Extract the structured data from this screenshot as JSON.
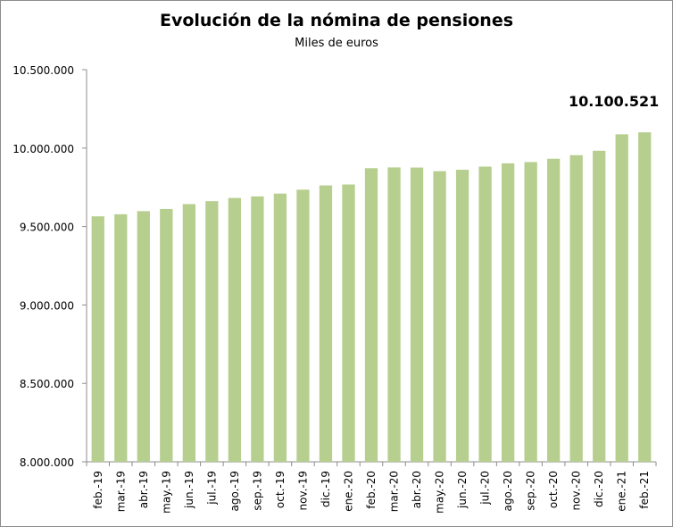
{
  "chart_data": {
    "type": "bar",
    "title": "Evolución de la nómina de pensiones",
    "subtitle": "Miles de euros",
    "xlabel": "",
    "ylabel": "",
    "ylim": [
      8000000,
      10500000
    ],
    "yticks": [
      8000000,
      8500000,
      9000000,
      9500000,
      10000000,
      10500000
    ],
    "ytick_labels": [
      "8.000.000",
      "8.500.000",
      "9.000.000",
      "9.500.000",
      "10.000.000",
      "10.500.000"
    ],
    "grid": false,
    "bar_color": "#b6cf8f",
    "categories": [
      "feb.-19",
      "mar.-19",
      "abr.-19",
      "may.-19",
      "jun.-19",
      "jul.-19",
      "ago.-19",
      "sep.-19",
      "oct.-19",
      "nov.-19",
      "dic.-19",
      "ene.-20",
      "feb.-20",
      "mar.-20",
      "abr.-20",
      "may.-20",
      "jun.-20",
      "jul.-20",
      "ago.-20",
      "sep.-20",
      "oct.-20",
      "nov.-20",
      "dic.-20",
      "ene.-21",
      "feb.-21"
    ],
    "values": [
      9565000,
      9578000,
      9598000,
      9612000,
      9643000,
      9662000,
      9682000,
      9692000,
      9710000,
      9735000,
      9762000,
      9768000,
      9872000,
      9877000,
      9876000,
      9853000,
      9862000,
      9882000,
      9903000,
      9911000,
      9932000,
      9955000,
      9983000,
      10088000,
      10100521
    ],
    "annotations": [
      {
        "category": "feb.-21",
        "text": "10.100.521"
      }
    ]
  }
}
